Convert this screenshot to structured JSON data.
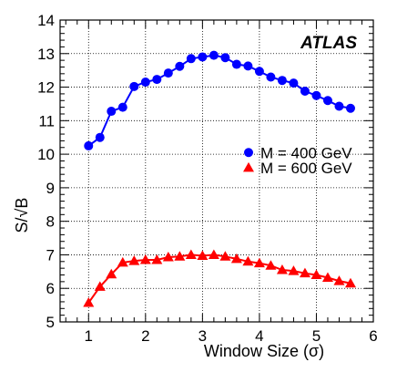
{
  "chart_data": {
    "type": "line",
    "title": "",
    "annotation": "ATLAS",
    "xlabel": "Window Size (σ)",
    "ylabel": "S/√B",
    "xlim": [
      0.5,
      6
    ],
    "ylim": [
      5,
      14
    ],
    "x_ticks": [
      "1",
      "2",
      "3",
      "4",
      "5",
      "6"
    ],
    "y_ticks": [
      "5",
      "6",
      "7",
      "8",
      "9",
      "10",
      "11",
      "12",
      "13",
      "14"
    ],
    "grid": true,
    "legend_position": "center-right",
    "series": [
      {
        "name": "M = 400 GeV",
        "marker": "circle",
        "color": "#0000ff",
        "x": [
          1.0,
          1.2,
          1.4,
          1.6,
          1.8,
          2.0,
          2.2,
          2.4,
          2.6,
          2.8,
          3.0,
          3.2,
          3.4,
          3.6,
          3.8,
          4.0,
          4.2,
          4.4,
          4.6,
          4.8,
          5.0,
          5.2,
          5.4,
          5.6
        ],
        "values": [
          10.25,
          10.5,
          11.28,
          11.4,
          12.02,
          12.15,
          12.23,
          12.42,
          12.62,
          12.85,
          12.9,
          12.95,
          12.88,
          12.68,
          12.63,
          12.47,
          12.3,
          12.2,
          12.12,
          11.88,
          11.75,
          11.6,
          11.43,
          11.37
        ]
      },
      {
        "name": "M = 600 GeV",
        "marker": "triangle",
        "color": "#ff0000",
        "x": [
          1.0,
          1.2,
          1.4,
          1.6,
          1.8,
          2.0,
          2.2,
          2.4,
          2.6,
          2.8,
          3.0,
          3.2,
          3.4,
          3.6,
          3.8,
          4.0,
          4.2,
          4.4,
          4.6,
          4.8,
          5.0,
          5.2,
          5.4,
          5.6
        ],
        "values": [
          5.57,
          6.05,
          6.42,
          6.77,
          6.82,
          6.85,
          6.85,
          6.93,
          6.95,
          7.0,
          6.97,
          7.0,
          6.95,
          6.88,
          6.8,
          6.75,
          6.68,
          6.55,
          6.52,
          6.45,
          6.4,
          6.32,
          6.22,
          6.15
        ]
      }
    ]
  }
}
